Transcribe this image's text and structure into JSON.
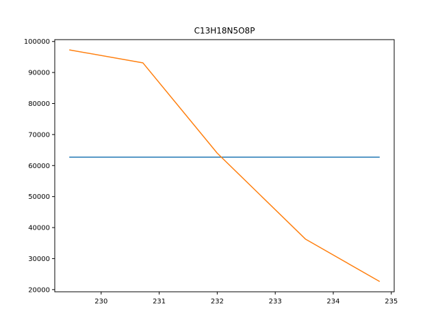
{
  "chart_data": {
    "type": "line",
    "title": "C13H18N5O8P",
    "xlabel": "",
    "ylabel": "",
    "xlim": [
      229.2,
      235.05
    ],
    "ylim": [
      19300,
      100600
    ],
    "x_ticks": [
      230,
      231,
      232,
      233,
      234,
      235
    ],
    "y_ticks": [
      20000,
      30000,
      40000,
      50000,
      60000,
      70000,
      80000,
      90000,
      100000
    ],
    "grid": false,
    "series": [
      {
        "color": "#1f77b4",
        "points": [
          [
            229.45,
            62700
          ],
          [
            234.8,
            62700
          ]
        ]
      },
      {
        "color": "#ff7f0e",
        "points": [
          [
            229.45,
            97300
          ],
          [
            230.72,
            93100
          ],
          [
            232.0,
            64000
          ],
          [
            233.52,
            36300
          ],
          [
            234.8,
            22600
          ]
        ]
      }
    ]
  }
}
